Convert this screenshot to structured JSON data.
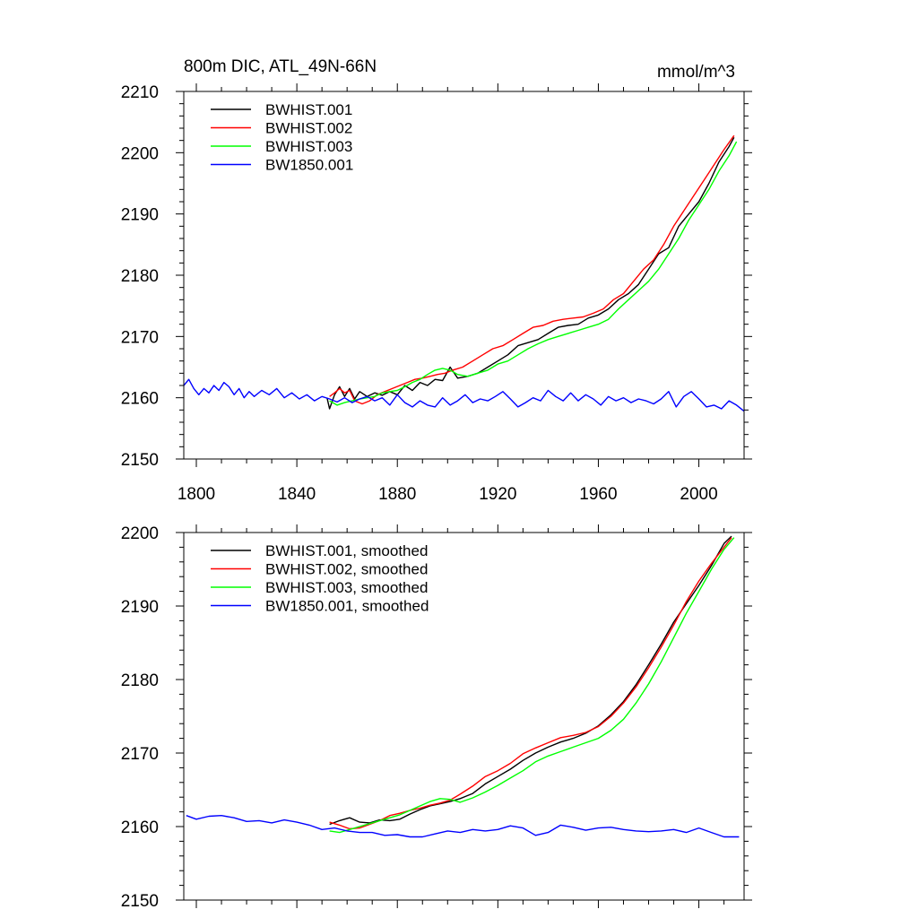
{
  "chart_data": [
    {
      "type": "line",
      "title": "800m DIC, ATL_49N-66N",
      "units": "mmol/m^3",
      "xlabel": "",
      "ylabel": "",
      "xlim": [
        1795,
        2018
      ],
      "ylim": [
        2150,
        2210
      ],
      "xticks": [
        1800,
        1840,
        1880,
        1920,
        1960,
        2000
      ],
      "xtick_labels": [
        "1800",
        "1840",
        "1880",
        "1920",
        "1960",
        "2000"
      ],
      "yticks": [
        2150,
        2160,
        2170,
        2180,
        2190,
        2200,
        2210
      ],
      "ytick_labels": [
        "2150",
        "2160",
        "2170",
        "2180",
        "2190",
        "2200",
        "2210"
      ],
      "legend_position": "top-left",
      "grid": false,
      "series": [
        {
          "name": "BWHIST.001",
          "color": "#000000",
          "x": [
            1852,
            1853,
            1855,
            1857,
            1859,
            1861,
            1863,
            1865,
            1868,
            1871,
            1874,
            1877,
            1880,
            1883,
            1886,
            1889,
            1892,
            1895,
            1898,
            1901,
            1904,
            1908,
            1912,
            1916,
            1920,
            1924,
            1928,
            1932,
            1936,
            1940,
            1944,
            1948,
            1952,
            1956,
            1960,
            1964,
            1968,
            1972,
            1976,
            1980,
            1984,
            1988,
            1992,
            1996,
            2000,
            2004,
            2008,
            2012,
            2014
          ],
          "y": [
            2160.0,
            2158.2,
            2160.5,
            2161.8,
            2160.2,
            2161.5,
            2159.8,
            2161.0,
            2160.2,
            2160.8,
            2160.4,
            2161.0,
            2160.5,
            2162.0,
            2161.2,
            2162.5,
            2162.0,
            2163.0,
            2162.8,
            2165.0,
            2163.2,
            2163.5,
            2164.0,
            2165.0,
            2166.0,
            2167.0,
            2168.5,
            2169.0,
            2169.5,
            2170.5,
            2171.5,
            2171.8,
            2172.0,
            2173.0,
            2173.5,
            2174.5,
            2176.0,
            2177.0,
            2178.5,
            2181.0,
            2183.5,
            2184.5,
            2188.0,
            2190.0,
            2192.0,
            2195.0,
            2198.5,
            2201.0,
            2202.5
          ]
        },
        {
          "name": "BWHIST.002",
          "color": "#ff0000",
          "x": [
            1853,
            1855,
            1857,
            1859,
            1861,
            1863,
            1866,
            1869,
            1872,
            1875,
            1878,
            1881,
            1884,
            1887,
            1890,
            1893,
            1896,
            1899,
            1902,
            1906,
            1910,
            1914,
            1918,
            1922,
            1926,
            1930,
            1934,
            1938,
            1942,
            1946,
            1950,
            1954,
            1958,
            1962,
            1966,
            1970,
            1974,
            1978,
            1982,
            1986,
            1990,
            1994,
            1998,
            2002,
            2006,
            2010,
            2014
          ],
          "y": [
            2160.2,
            2160.8,
            2161.5,
            2160.8,
            2161.2,
            2159.5,
            2159.0,
            2159.5,
            2160.5,
            2161.0,
            2161.5,
            2162.0,
            2162.5,
            2163.0,
            2163.2,
            2163.5,
            2163.8,
            2164.0,
            2164.5,
            2165.0,
            2166.0,
            2167.0,
            2168.0,
            2168.5,
            2169.5,
            2170.5,
            2171.5,
            2171.8,
            2172.5,
            2172.8,
            2173.0,
            2173.2,
            2173.8,
            2174.5,
            2176.0,
            2177.0,
            2179.0,
            2181.0,
            2182.5,
            2185.0,
            2188.0,
            2190.5,
            2193.0,
            2195.5,
            2198.0,
            2200.5,
            2202.8
          ]
        },
        {
          "name": "BWHIST.003",
          "color": "#00ff00",
          "x": [
            1853,
            1856,
            1859,
            1862,
            1865,
            1868,
            1871,
            1874,
            1877,
            1880,
            1883,
            1886,
            1889,
            1892,
            1895,
            1898,
            1901,
            1904,
            1908,
            1912,
            1916,
            1920,
            1924,
            1928,
            1932,
            1936,
            1940,
            1944,
            1948,
            1952,
            1956,
            1960,
            1964,
            1968,
            1972,
            1976,
            1980,
            1984,
            1988,
            1992,
            1996,
            2000,
            2004,
            2008,
            2012,
            2015
          ],
          "y": [
            2159.5,
            2158.8,
            2159.2,
            2159.5,
            2159.8,
            2160.0,
            2160.2,
            2160.8,
            2161.0,
            2161.2,
            2161.8,
            2162.5,
            2163.0,
            2163.8,
            2164.5,
            2164.8,
            2164.5,
            2163.8,
            2163.5,
            2164.0,
            2164.5,
            2165.5,
            2166.0,
            2167.0,
            2168.0,
            2168.8,
            2169.5,
            2170.0,
            2170.5,
            2171.0,
            2171.5,
            2172.0,
            2172.8,
            2174.5,
            2176.0,
            2177.5,
            2179.0,
            2181.0,
            2183.5,
            2186.0,
            2189.0,
            2191.5,
            2194.0,
            2197.0,
            2199.5,
            2201.8
          ]
        },
        {
          "name": "BW1850.001",
          "color": "#0000ff",
          "x": [
            1795,
            1797,
            1799,
            1801,
            1803,
            1805,
            1807,
            1809,
            1811,
            1813,
            1815,
            1817,
            1819,
            1821,
            1823,
            1826,
            1829,
            1832,
            1835,
            1838,
            1841,
            1844,
            1847,
            1850,
            1853,
            1856,
            1859,
            1862,
            1865,
            1868,
            1871,
            1874,
            1877,
            1880,
            1883,
            1886,
            1889,
            1892,
            1895,
            1898,
            1901,
            1904,
            1907,
            1910,
            1913,
            1916,
            1919,
            1922,
            1925,
            1928,
            1931,
            1934,
            1937,
            1940,
            1943,
            1946,
            1949,
            1952,
            1955,
            1958,
            1961,
            1964,
            1967,
            1970,
            1973,
            1976,
            1979,
            1982,
            1985,
            1988,
            1991,
            1994,
            1997,
            2000,
            2003,
            2006,
            2009,
            2012,
            2015,
            2018
          ],
          "y": [
            2162.0,
            2163.0,
            2161.5,
            2160.5,
            2161.5,
            2160.8,
            2162.0,
            2161.2,
            2162.5,
            2161.8,
            2160.5,
            2161.5,
            2160.0,
            2161.0,
            2160.2,
            2161.2,
            2160.5,
            2161.5,
            2160.0,
            2160.8,
            2159.8,
            2160.5,
            2159.5,
            2160.2,
            2159.8,
            2159.3,
            2160.0,
            2159.2,
            2159.8,
            2160.2,
            2159.5,
            2160.0,
            2158.8,
            2160.5,
            2159.2,
            2158.5,
            2159.5,
            2158.8,
            2158.5,
            2160.0,
            2158.8,
            2159.5,
            2160.5,
            2159.2,
            2159.8,
            2159.5,
            2160.2,
            2161.0,
            2159.8,
            2158.5,
            2159.2,
            2160.0,
            2159.5,
            2161.2,
            2160.2,
            2159.5,
            2160.8,
            2159.5,
            2160.5,
            2159.8,
            2158.8,
            2160.2,
            2159.5,
            2160.0,
            2159.2,
            2159.8,
            2159.5,
            2159.0,
            2159.8,
            2161.0,
            2158.5,
            2160.2,
            2161.0,
            2159.8,
            2158.5,
            2158.8,
            2158.2,
            2159.5,
            2158.8,
            2157.8
          ]
        }
      ]
    },
    {
      "type": "line",
      "title": "",
      "xlabel": "",
      "ylabel": "",
      "xlim": [
        1795,
        2018
      ],
      "ylim": [
        2150,
        2200
      ],
      "xticks": [
        1800,
        1840,
        1880,
        1920,
        1960,
        2000
      ],
      "xtick_labels": [],
      "yticks": [
        2150,
        2160,
        2170,
        2180,
        2190,
        2200
      ],
      "ytick_labels": [
        "2150",
        "2160",
        "2170",
        "2180",
        "2190",
        "2200"
      ],
      "legend_position": "top-left",
      "grid": false,
      "series": [
        {
          "name": "BWHIST.001, smoothed",
          "color": "#000000",
          "x": [
            1853,
            1857,
            1861,
            1865,
            1869,
            1873,
            1877,
            1881,
            1885,
            1889,
            1893,
            1897,
            1901,
            1905,
            1910,
            1915,
            1920,
            1925,
            1930,
            1935,
            1940,
            1945,
            1950,
            1955,
            1960,
            1965,
            1970,
            1975,
            1980,
            1985,
            1990,
            1995,
            2000,
            2005,
            2010,
            2013
          ],
          "y": [
            2160.3,
            2160.8,
            2161.2,
            2160.6,
            2160.5,
            2160.9,
            2160.8,
            2161.0,
            2161.7,
            2162.3,
            2162.8,
            2163.1,
            2163.4,
            2163.8,
            2164.5,
            2165.8,
            2166.8,
            2167.8,
            2169.0,
            2170.0,
            2170.8,
            2171.5,
            2172.0,
            2172.7,
            2173.7,
            2175.2,
            2177.0,
            2179.3,
            2182.0,
            2184.8,
            2187.8,
            2190.3,
            2192.8,
            2195.5,
            2198.5,
            2199.5
          ]
        },
        {
          "name": "BWHIST.002, smoothed",
          "color": "#ff0000",
          "x": [
            1853,
            1857,
            1861,
            1865,
            1869,
            1873,
            1877,
            1881,
            1885,
            1889,
            1893,
            1897,
            1901,
            1905,
            1910,
            1915,
            1920,
            1925,
            1930,
            1935,
            1940,
            1945,
            1950,
            1955,
            1960,
            1965,
            1970,
            1975,
            1980,
            1985,
            1990,
            1995,
            2000,
            2005,
            2010,
            2013
          ],
          "y": [
            2160.6,
            2160.2,
            2159.7,
            2159.8,
            2160.3,
            2160.8,
            2161.5,
            2161.8,
            2162.2,
            2162.5,
            2162.9,
            2163.2,
            2163.6,
            2164.4,
            2165.5,
            2166.8,
            2167.6,
            2168.6,
            2169.9,
            2170.7,
            2171.4,
            2172.1,
            2172.4,
            2172.8,
            2173.6,
            2175.0,
            2176.8,
            2179.0,
            2181.6,
            2184.4,
            2187.4,
            2190.6,
            2193.4,
            2195.8,
            2198.0,
            2199.3
          ]
        },
        {
          "name": "BWHIST.003, smoothed",
          "color": "#00ff00",
          "x": [
            1853,
            1857,
            1861,
            1865,
            1869,
            1873,
            1877,
            1881,
            1885,
            1889,
            1893,
            1897,
            1901,
            1905,
            1910,
            1915,
            1920,
            1925,
            1930,
            1935,
            1940,
            1945,
            1950,
            1955,
            1960,
            1965,
            1970,
            1975,
            1980,
            1985,
            1990,
            1995,
            2000,
            2005,
            2010,
            2014
          ],
          "y": [
            2159.4,
            2159.2,
            2159.6,
            2160.0,
            2160.4,
            2160.8,
            2161.2,
            2161.6,
            2162.2,
            2162.8,
            2163.4,
            2163.8,
            2163.7,
            2163.3,
            2163.9,
            2164.7,
            2165.6,
            2166.6,
            2167.6,
            2168.8,
            2169.6,
            2170.2,
            2170.8,
            2171.4,
            2172.0,
            2173.1,
            2174.6,
            2176.8,
            2179.4,
            2182.4,
            2185.7,
            2189.0,
            2192.0,
            2195.0,
            2197.7,
            2199.3
          ]
        },
        {
          "name": "BW1850.001, smoothed",
          "color": "#0000ff",
          "x": [
            1796,
            1800,
            1805,
            1810,
            1815,
            1820,
            1825,
            1830,
            1835,
            1840,
            1845,
            1850,
            1855,
            1860,
            1865,
            1870,
            1875,
            1880,
            1885,
            1890,
            1895,
            1900,
            1905,
            1910,
            1915,
            1920,
            1925,
            1930,
            1935,
            1940,
            1945,
            1950,
            1955,
            1960,
            1965,
            1970,
            1975,
            1980,
            1985,
            1990,
            1995,
            2000,
            2005,
            2010,
            2016
          ],
          "y": [
            2161.5,
            2161.0,
            2161.4,
            2161.5,
            2161.2,
            2160.7,
            2160.8,
            2160.5,
            2160.9,
            2160.6,
            2160.2,
            2159.6,
            2159.8,
            2159.4,
            2159.2,
            2159.2,
            2158.8,
            2158.9,
            2158.6,
            2158.6,
            2159.0,
            2159.4,
            2159.2,
            2159.6,
            2159.4,
            2159.6,
            2160.1,
            2159.8,
            2158.8,
            2159.2,
            2160.2,
            2159.9,
            2159.5,
            2159.8,
            2159.9,
            2159.6,
            2159.4,
            2159.3,
            2159.4,
            2159.6,
            2159.2,
            2159.8,
            2159.2,
            2158.6,
            2158.6
          ]
        }
      ]
    }
  ]
}
